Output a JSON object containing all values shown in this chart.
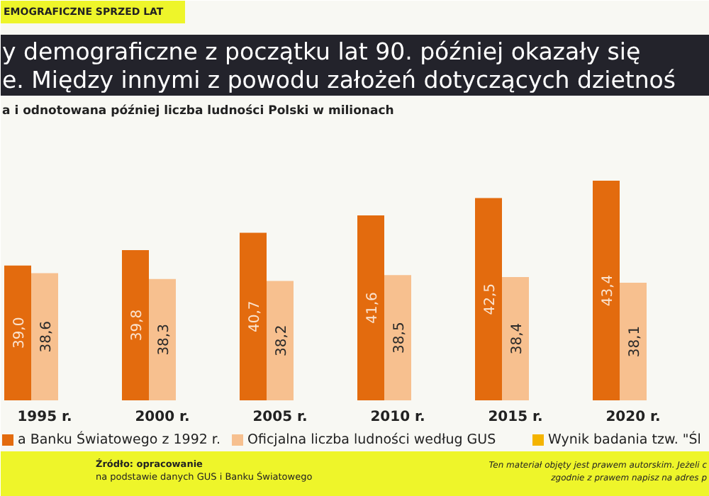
{
  "chart_data": {
    "type": "bar",
    "title": "y demograficzne z początku lat 90. później okazały się\ne. Między innymi z powodu założeń dotyczących dzietnoś",
    "subtitle": "a i odnotowana później liczba ludności Polski w milionach",
    "categories": [
      "1995 r.",
      "2000 r.",
      "2005 r.",
      "2010 r.",
      "2015 r.",
      "2020 r."
    ],
    "series": [
      {
        "name": "a Banku Światowego z 1992 r.",
        "color": "#e36b0e",
        "values": [
          39.0,
          39.8,
          40.7,
          41.6,
          42.5,
          43.4
        ],
        "value_labels": [
          "39,0",
          "39,8",
          "40,7",
          "41,6",
          "42,5",
          "43,4"
        ]
      },
      {
        "name": "Oficjalna liczba ludności według GUS",
        "color": "#f7c08f",
        "values": [
          38.6,
          38.3,
          38.2,
          38.5,
          38.4,
          38.1
        ],
        "value_labels": [
          "38,6",
          "38,3",
          "38,2",
          "38,5",
          "38,4",
          "38,1"
        ]
      },
      {
        "name": "Wynik badania tzw. \"Śl",
        "color": "#f4b400",
        "values": [
          null,
          null,
          null,
          null,
          null,
          null
        ]
      }
    ],
    "ylim": [
      32,
      43.4
    ],
    "legend": "bottom",
    "annotations": [
      "EMOGRAFICZNE SPRZED LAT",
      "Źródło: opracowanie",
      "na podstawie danych GUS i Banku Światowego",
      "Ten materiał objęty jest prawem autorskim. Jeżeli c",
      "zgodnie z prawem napisz na adres p"
    ]
  }
}
